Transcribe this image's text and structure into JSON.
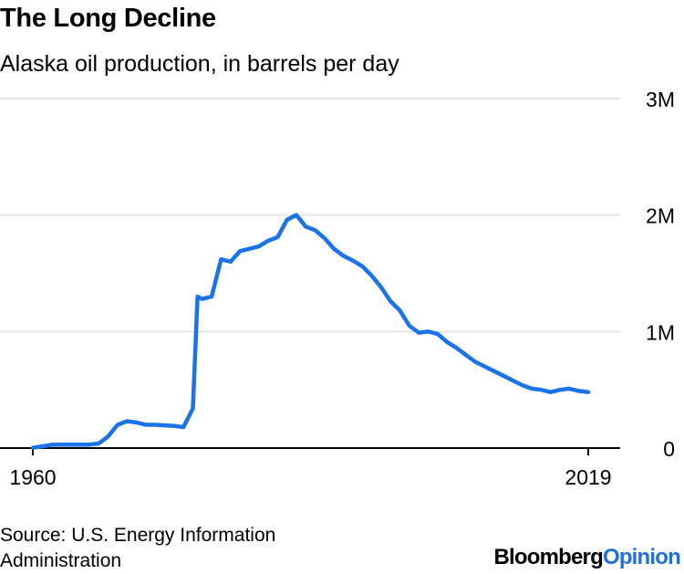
{
  "title": "The Long Decline",
  "subtitle": "Alaska oil production, in barrels per day",
  "source": "Source: U.S. Energy Information Administration",
  "brand": {
    "part1": "Bloomberg",
    "part2": "Opinion",
    "accent": "#1f6fe0"
  },
  "chart_data": {
    "type": "line",
    "title": "The Long Decline",
    "subtitle": "Alaska oil production, in barrels per day",
    "xlabel": "",
    "ylabel": "",
    "xlim": [
      1960,
      2019
    ],
    "ylim": [
      0,
      3000000
    ],
    "x_ticks": [
      "1960",
      "2019"
    ],
    "y_ticks": [
      {
        "value": 0,
        "label": "0"
      },
      {
        "value": 1000000,
        "label": "1M"
      },
      {
        "value": 2000000,
        "label": "2M"
      },
      {
        "value": 3000000,
        "label": "3M"
      }
    ],
    "grid": true,
    "legend": "none",
    "color": "#1a73e8",
    "series": [
      {
        "x": [
          1960,
          1961,
          1962,
          1963,
          1964,
          1965,
          1966,
          1967,
          1968,
          1969,
          1970,
          1971,
          1972,
          1973,
          1974,
          1975,
          1976,
          1977,
          1977.5,
          1978,
          1979,
          1980,
          1981,
          1982,
          1983,
          1984,
          1985,
          1986,
          1987,
          1988,
          1989,
          1990,
          1991,
          1992,
          1993,
          1994,
          1995,
          1996,
          1997,
          1998,
          1999,
          2000,
          2001,
          2002,
          2003,
          2004,
          2005,
          2006,
          2007,
          2008,
          2009,
          2010,
          2011,
          2012,
          2013,
          2014,
          2015,
          2016,
          2017,
          2018,
          2019
        ],
        "y": [
          2000,
          15000,
          28000,
          30000,
          30000,
          30000,
          30000,
          39000,
          100000,
          200000,
          230000,
          220000,
          200000,
          200000,
          195000,
          190000,
          180000,
          340000,
          1300000,
          1280000,
          1300000,
          1620000,
          1600000,
          1690000,
          1710000,
          1730000,
          1780000,
          1810000,
          1960000,
          2000000,
          1900000,
          1870000,
          1800000,
          1710000,
          1650000,
          1610000,
          1560000,
          1480000,
          1380000,
          1260000,
          1180000,
          1050000,
          990000,
          1000000,
          980000,
          910000,
          860000,
          800000,
          740000,
          700000,
          660000,
          620000,
          580000,
          540000,
          510000,
          500000,
          480000,
          500000,
          510000,
          490000,
          480000
        ]
      }
    ]
  }
}
